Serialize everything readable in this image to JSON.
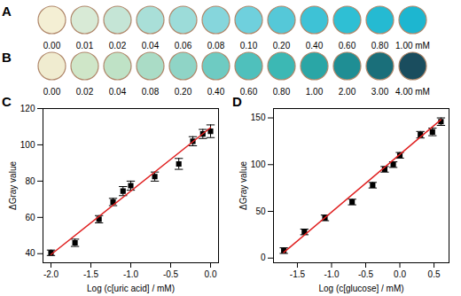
{
  "chart_data": [
    {
      "type": "swatch",
      "title": "A",
      "categories": [
        "0.00",
        "0.01",
        "0.02",
        "0.04",
        "0.06",
        "0.08",
        "0.10",
        "0.20",
        "0.40",
        "0.60",
        "0.80",
        "1.00 mM"
      ],
      "colors": [
        "#f4efd4",
        "#d8ead6",
        "#c5e5d6",
        "#a9dfd8",
        "#9cdcd9",
        "#86d6dc",
        "#6fd0dd",
        "#55c8d8",
        "#3ec2d6",
        "#2fbfd4",
        "#25bad2",
        "#1db6d0"
      ]
    },
    {
      "type": "swatch",
      "title": "B",
      "categories": [
        "0.00",
        "0.02",
        "0.04",
        "0.08",
        "0.20",
        "0.40",
        "0.60",
        "0.80",
        "1.00",
        "2.00",
        "3.00",
        "4.00 mM"
      ],
      "colors": [
        "#f0ecd0",
        "#cfe6c8",
        "#bfe2c6",
        "#aadcc6",
        "#8fd4c6",
        "#6ecbc2",
        "#4fc0bc",
        "#3cb8b4",
        "#2aa6a6",
        "#1f8e94",
        "#1a6f7a",
        "#1a4d5e"
      ]
    },
    {
      "type": "scatter",
      "title": "C",
      "x_label": "Log (c[uric acid] / mM)",
      "y_label": "ΔGray value",
      "xlim": [
        -2.1,
        0.1
      ],
      "ylim": [
        35,
        120
      ],
      "xticks": [
        {
          "value": -2,
          "label": "-2.0"
        },
        {
          "value": -1.5,
          "label": "-1.5"
        },
        {
          "value": -1,
          "label": "-1.0"
        },
        {
          "value": -0.5,
          "label": "-0.5"
        },
        {
          "value": 0,
          "label": "0.0"
        }
      ],
      "yticks": [
        40,
        60,
        80,
        100,
        120
      ],
      "grid": false,
      "series": [
        {
          "type": "scatter",
          "color": "#000000",
          "marker": "square",
          "x": [
            -2.0,
            -1.699,
            -1.398,
            -1.222,
            -1.097,
            -1.0,
            -0.699,
            -0.398,
            -0.222,
            -0.097,
            0.0
          ],
          "values": [
            40.5,
            46,
            59,
            68.5,
            74.5,
            77.5,
            82.5,
            89.5,
            102,
            106,
            107.5
          ],
          "errors": [
            1.5,
            2,
            2,
            2,
            2.5,
            2.5,
            2.5,
            3,
            2.5,
            2.5,
            3.5
          ]
        },
        {
          "type": "line",
          "color": "#e02020",
          "line_style": "solid",
          "x": [
            -2.0,
            0.0
          ],
          "values": [
            39.5,
            109.5
          ]
        }
      ]
    },
    {
      "type": "scatter",
      "title": "D",
      "x_label": "Log (c[glucose] / mM)",
      "y_label": "ΔGray value",
      "xlim": [
        -1.85,
        0.72
      ],
      "ylim": [
        -5,
        160
      ],
      "xticks": [
        {
          "value": -1.5,
          "label": "-1.5"
        },
        {
          "value": -1,
          "label": "-1.0"
        },
        {
          "value": -0.5,
          "label": "-0.5"
        },
        {
          "value": 0,
          "label": "0.0"
        },
        {
          "value": 0.5,
          "label": "0.5"
        }
      ],
      "yticks": [
        0,
        50,
        100,
        150
      ],
      "grid": false,
      "series": [
        {
          "type": "scatter",
          "color": "#000000",
          "marker": "square",
          "x": [
            -1.699,
            -1.398,
            -1.097,
            -0.699,
            -0.398,
            -0.222,
            -0.097,
            0.0,
            0.301,
            0.477,
            0.602
          ],
          "values": [
            8,
            28,
            43,
            60,
            78,
            95,
            100,
            110,
            132,
            135,
            146
          ],
          "errors": [
            3,
            3,
            3,
            3,
            3,
            3,
            3,
            3,
            3.5,
            4,
            4
          ]
        },
        {
          "type": "line",
          "color": "#e02020",
          "line_style": "solid",
          "x": [
            -1.7,
            0.6
          ],
          "values": [
            6,
            148
          ]
        }
      ]
    }
  ]
}
